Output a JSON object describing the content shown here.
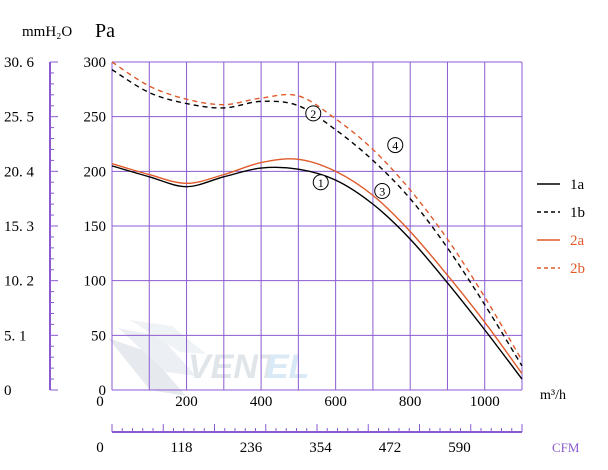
{
  "chart_data": {
    "type": "line",
    "title": "",
    "units": {
      "left_outer": "mmH₂O",
      "left_inner": "Pa",
      "bottom_primary": "m³/h",
      "bottom_secondary": "CFM"
    },
    "y_pa": {
      "ylim": [
        0,
        300
      ],
      "ticks": [
        "300",
        "250",
        "200",
        "150",
        "100",
        "50",
        "0"
      ]
    },
    "y_mmh2o": {
      "ticks": [
        "30. 6",
        "25. 5",
        "20. 4",
        "15. 3",
        "10. 2",
        "5. 1",
        "0"
      ]
    },
    "x_m3h": {
      "xlim": [
        0,
        1100
      ],
      "ticks": [
        "0",
        "200",
        "400",
        "600",
        "800",
        "1000"
      ]
    },
    "x_cfm": {
      "ticks": [
        "0",
        "118",
        "236",
        "354",
        "472",
        "590"
      ]
    },
    "series": [
      {
        "name": "1a",
        "color": "#000000",
        "dash": "solid",
        "x": [
          0,
          100,
          200,
          300,
          400,
          500,
          600,
          700,
          800,
          900,
          1000,
          1100
        ],
        "y": [
          205,
          195,
          186,
          195,
          203,
          202,
          192,
          170,
          138,
          98,
          55,
          10
        ]
      },
      {
        "name": "1b",
        "color": "#000000",
        "dash": "dashed",
        "x": [
          0,
          100,
          200,
          300,
          400,
          500,
          600,
          700,
          800,
          900,
          1000,
          1100
        ],
        "y": [
          293,
          272,
          262,
          258,
          264,
          260,
          238,
          210,
          175,
          130,
          78,
          22
        ]
      },
      {
        "name": "2a",
        "color": "#e05a2a",
        "dash": "solid",
        "x": [
          0,
          100,
          200,
          300,
          400,
          500,
          600,
          700,
          800,
          900,
          1000,
          1100
        ],
        "y": [
          207,
          197,
          189,
          197,
          208,
          211,
          200,
          178,
          145,
          105,
          62,
          15
        ]
      },
      {
        "name": "2b",
        "color": "#e05a2a",
        "dash": "dashed",
        "x": [
          0,
          100,
          200,
          300,
          400,
          500,
          600,
          700,
          800,
          900,
          1000,
          1100
        ],
        "y": [
          300,
          278,
          266,
          261,
          267,
          269,
          248,
          220,
          183,
          138,
          85,
          27
        ]
      }
    ],
    "annotations": [
      {
        "label": "1",
        "x": 560,
        "y": 190
      },
      {
        "label": "2",
        "x": 540,
        "y": 253
      },
      {
        "label": "3",
        "x": 725,
        "y": 182
      },
      {
        "label": "4",
        "x": 760,
        "y": 224
      }
    ],
    "watermark": "VENTEL"
  }
}
